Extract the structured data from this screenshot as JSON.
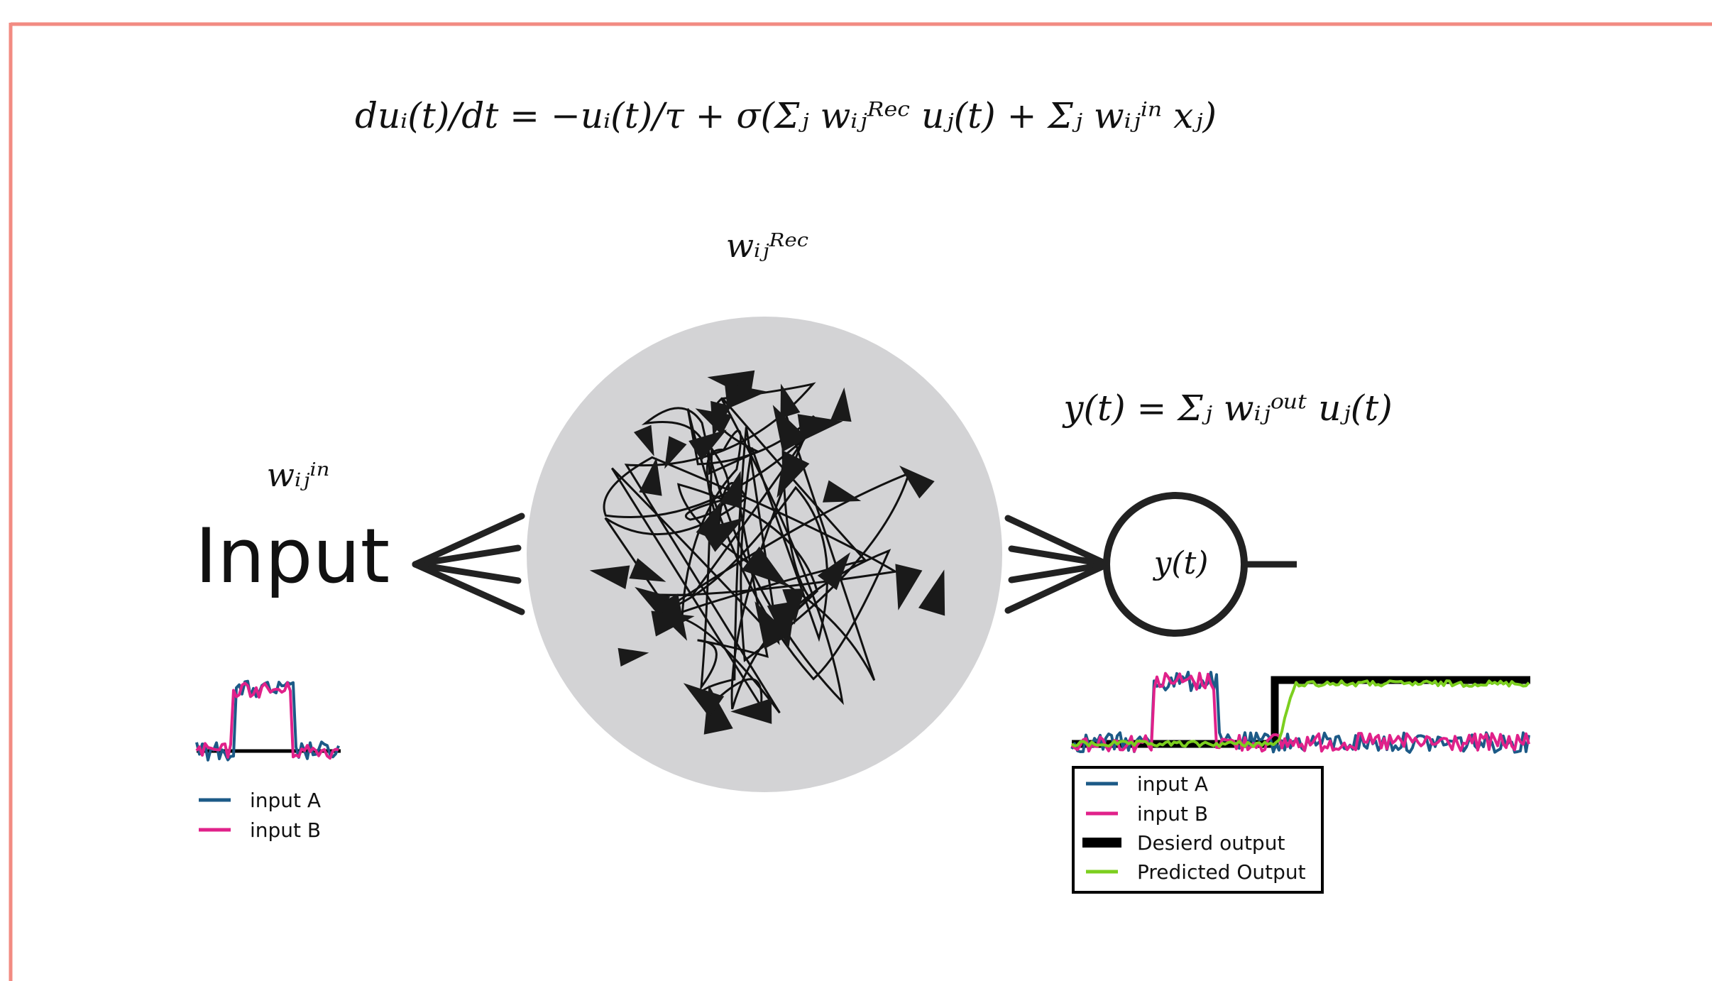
{
  "equations": {
    "dynamics": "duᵢ(t)/dt = −uᵢ(t)/τ + σ(Σⱼ wᵢⱼᴿᵉᶜ uⱼ(t) + Σⱼ wᵢⱼⁱⁿ xⱼ)",
    "readout": "y(t) = Σⱼ wᵢⱼᵒᵘᵗ uⱼ(t)"
  },
  "labels": {
    "recurrent_weights": "wᵢⱼᴿᵉᶜ",
    "input_weights": "wᵢⱼⁱⁿ",
    "input": "Input",
    "output_node": "y(t)"
  },
  "input_legend": [
    "input A",
    "input B"
  ],
  "output_legend": [
    "input A",
    "input B",
    "Desierd output",
    "Predicted Output"
  ]
}
